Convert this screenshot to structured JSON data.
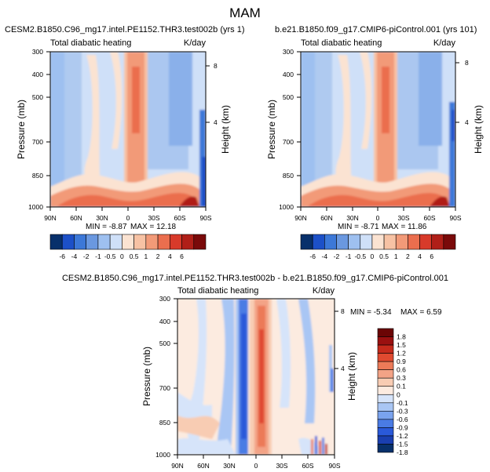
{
  "page": {
    "title": "MAM"
  },
  "palettes": {
    "left": [
      "#08306b",
      "#1c50c8",
      "#3c78d8",
      "#6a98e0",
      "#9ec0f0",
      "#cfe0f8",
      "#fbe3d2",
      "#f7c2a4",
      "#f29a78",
      "#eb6e4e",
      "#d83a2a",
      "#b01f18",
      "#7a0a0a"
    ],
    "diff": [
      "#08306b",
      "#1a3fb0",
      "#2a59d9",
      "#4a7be4",
      "#7aa3ee",
      "#a9c6f4",
      "#d6e4fa",
      "#fcebe0",
      "#f8ccb3",
      "#f3a386",
      "#ec7a58",
      "#e04a30",
      "#c52a1c",
      "#9a1010",
      "#6b0505"
    ]
  },
  "chart_data": [
    {
      "type": "contour",
      "id": "panel-left",
      "title": "CESM2.B1850.C96_mg17.intel.PE1152.THR3.test002b (yrs 1)",
      "subtitle_left": "Total diabatic heating",
      "subtitle_right": "K/day",
      "ylabel": "Pressure (mb)",
      "ylabel_right": "Height (km)",
      "x_ticks": [
        "90N",
        "60N",
        "30N",
        "0",
        "30S",
        "60S",
        "90S"
      ],
      "y_ticks": [
        "300",
        "400",
        "500",
        "700",
        "850",
        "1000"
      ],
      "y_ticks_right": [
        "8",
        "4"
      ],
      "min_label": "MIN = -8.87",
      "max_label": "MAX = 12.18",
      "min": -8.87,
      "max": 12.18
    },
    {
      "type": "contour",
      "id": "panel-right",
      "title": "b.e21.B1850.f09_g17.CMIP6-piControl.001 (yrs 101)",
      "subtitle_left": "Total diabatic heating",
      "subtitle_right": "K/day",
      "ylabel": "Pressure (mb)",
      "ylabel_right": "Height (km)",
      "x_ticks": [
        "90N",
        "60N",
        "30N",
        "0",
        "30S",
        "60S",
        "90S"
      ],
      "y_ticks": [
        "300",
        "400",
        "500",
        "700",
        "850",
        "1000"
      ],
      "y_ticks_right": [
        "8",
        "4"
      ],
      "min_label": "MIN = -8.71",
      "max_label": "MAX = 11.86",
      "min": -8.71,
      "max": 11.86
    },
    {
      "type": "contour",
      "id": "panel-diff",
      "title": "CESM2.B1850.C96_mg17.intel.PE1152.THR3.test002b - b.e21.B1850.f09_g17.CMIP6-piControl.001",
      "subtitle_left": "Total diabatic heating",
      "subtitle_right": "K/day",
      "ylabel": "Pressure (mb)",
      "ylabel_right": "Height (km)",
      "x_ticks": [
        "90N",
        "60N",
        "30N",
        "0",
        "30S",
        "60S",
        "90S"
      ],
      "y_ticks": [
        "300",
        "400",
        "500",
        "700",
        "850",
        "1000"
      ],
      "y_ticks_right": [
        "8",
        "4"
      ],
      "min_label": "MIN = -5.34",
      "max_label": "MAX = 6.59",
      "min": -5.34,
      "max": 6.59
    }
  ],
  "colorbars": {
    "horizontal": {
      "labels": [
        "-6",
        "-4",
        "-2",
        "-1",
        "-0.5",
        "0",
        "0.5",
        "1",
        "2",
        "4",
        "6"
      ]
    },
    "vertical": {
      "labels": [
        "1.8",
        "1.5",
        "1.2",
        "0.9",
        "0.6",
        "0.3",
        "0.1",
        "0",
        "-0.1",
        "-0.3",
        "-0.6",
        "-0.9",
        "-1.2",
        "-1.5",
        "-1.8"
      ]
    }
  }
}
